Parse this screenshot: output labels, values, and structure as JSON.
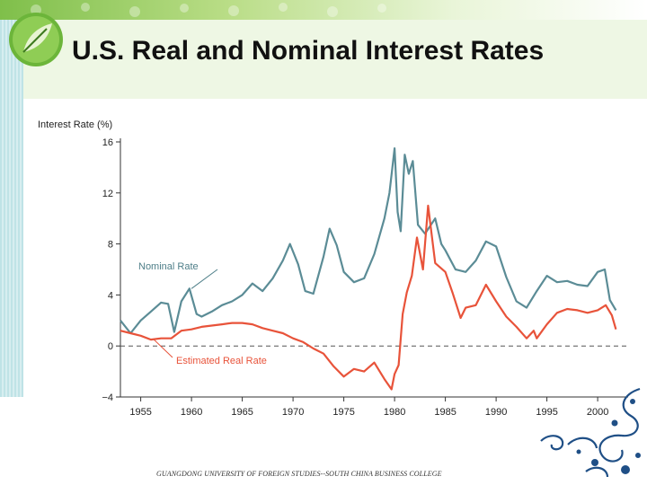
{
  "slide": {
    "title": "U.S. Real and Nominal Interest Rates",
    "footer": "GUANGDONG UNIVERSITY OF FOREIGN STUDIES--SOUTH CHINA BUSINESS COLLEGE"
  },
  "colors": {
    "nominal": "#5b8c96",
    "real": "#e8533a",
    "zero_line": "#555555"
  },
  "chart_data": {
    "type": "line",
    "ylabel": "Interest Rate (%)",
    "xlabel": "",
    "ylim": [
      -4,
      16
    ],
    "xlim": [
      1953,
      2003
    ],
    "yticks": [
      "16",
      "12",
      "8",
      "4",
      "0",
      "−4"
    ],
    "ytick_values": [
      16,
      12,
      8,
      4,
      0,
      -4
    ],
    "xticks": [
      "1955",
      "1960",
      "1965",
      "1970",
      "1975",
      "1980",
      "1985",
      "1990",
      "1995",
      "2000"
    ],
    "xtick_values": [
      1955,
      1960,
      1965,
      1970,
      1975,
      1980,
      1985,
      1990,
      1995,
      2000
    ],
    "reference_line": 0,
    "annotations": [
      "Nominal Rate",
      "Estimated Real Rate"
    ],
    "series": [
      {
        "name": "Nominal Rate",
        "x": [
          1953,
          1954,
          1955,
          1956,
          1957,
          1957.7,
          1958.3,
          1959,
          1959.8,
          1960.5,
          1961,
          1962,
          1963,
          1964,
          1965,
          1966,
          1967,
          1968,
          1969,
          1969.7,
          1970.5,
          1971.2,
          1972,
          1973,
          1973.6,
          1974.3,
          1975,
          1976,
          1977,
          1978,
          1979,
          1979.5,
          1980,
          1980.3,
          1980.6,
          1981,
          1981.4,
          1981.8,
          1982.3,
          1983,
          1984,
          1984.6,
          1985,
          1986,
          1987,
          1988,
          1989,
          1990,
          1991,
          1992,
          1993,
          1994,
          1995,
          1996,
          1997,
          1998,
          1999,
          2000,
          2000.7,
          2001.2,
          2001.8
        ],
        "values": [
          2.0,
          1.0,
          2.0,
          2.7,
          3.4,
          3.3,
          1.1,
          3.5,
          4.5,
          2.5,
          2.3,
          2.7,
          3.2,
          3.5,
          4.0,
          4.9,
          4.3,
          5.3,
          6.7,
          8.0,
          6.4,
          4.3,
          4.1,
          7.0,
          9.2,
          7.9,
          5.8,
          5.0,
          5.3,
          7.2,
          10.0,
          12.0,
          15.5,
          10.5,
          9.0,
          15.0,
          13.5,
          14.5,
          9.5,
          8.8,
          10.0,
          8.0,
          7.5,
          6.0,
          5.8,
          6.7,
          8.2,
          7.8,
          5.4,
          3.5,
          3.0,
          4.3,
          5.5,
          5.0,
          5.1,
          4.8,
          4.7,
          5.8,
          6.0,
          3.6,
          2.8
        ]
      },
      {
        "name": "Estimated Real Rate",
        "x": [
          1953,
          1954,
          1955,
          1956,
          1957,
          1958,
          1959,
          1960,
          1961,
          1962,
          1963,
          1964,
          1965,
          1966,
          1967,
          1968,
          1969,
          1970,
          1971,
          1972,
          1973,
          1974,
          1975,
          1976,
          1977,
          1978,
          1979,
          1979.7,
          1980,
          1980.4,
          1980.8,
          1981.2,
          1981.7,
          1982.2,
          1982.8,
          1983.3,
          1984,
          1985,
          1985.7,
          1986.5,
          1987,
          1988,
          1989,
          1990,
          1991,
          1992,
          1993,
          1993.7,
          1994,
          1995,
          1996,
          1997,
          1998,
          1999,
          2000,
          2000.8,
          2001.4,
          2001.8
        ],
        "values": [
          1.2,
          1.0,
          0.8,
          0.5,
          0.6,
          0.6,
          1.2,
          1.3,
          1.5,
          1.6,
          1.7,
          1.8,
          1.8,
          1.7,
          1.4,
          1.2,
          1.0,
          0.6,
          0.3,
          -0.2,
          -0.6,
          -1.6,
          -2.4,
          -1.8,
          -2.0,
          -1.3,
          -2.6,
          -3.4,
          -2.2,
          -1.5,
          2.5,
          4.2,
          5.5,
          8.5,
          6.0,
          11.0,
          6.5,
          5.8,
          4.2,
          2.2,
          3.0,
          3.2,
          4.8,
          3.5,
          2.3,
          1.5,
          0.6,
          1.2,
          0.6,
          1.7,
          2.6,
          2.9,
          2.8,
          2.6,
          2.8,
          3.2,
          2.4,
          1.3
        ]
      }
    ]
  }
}
